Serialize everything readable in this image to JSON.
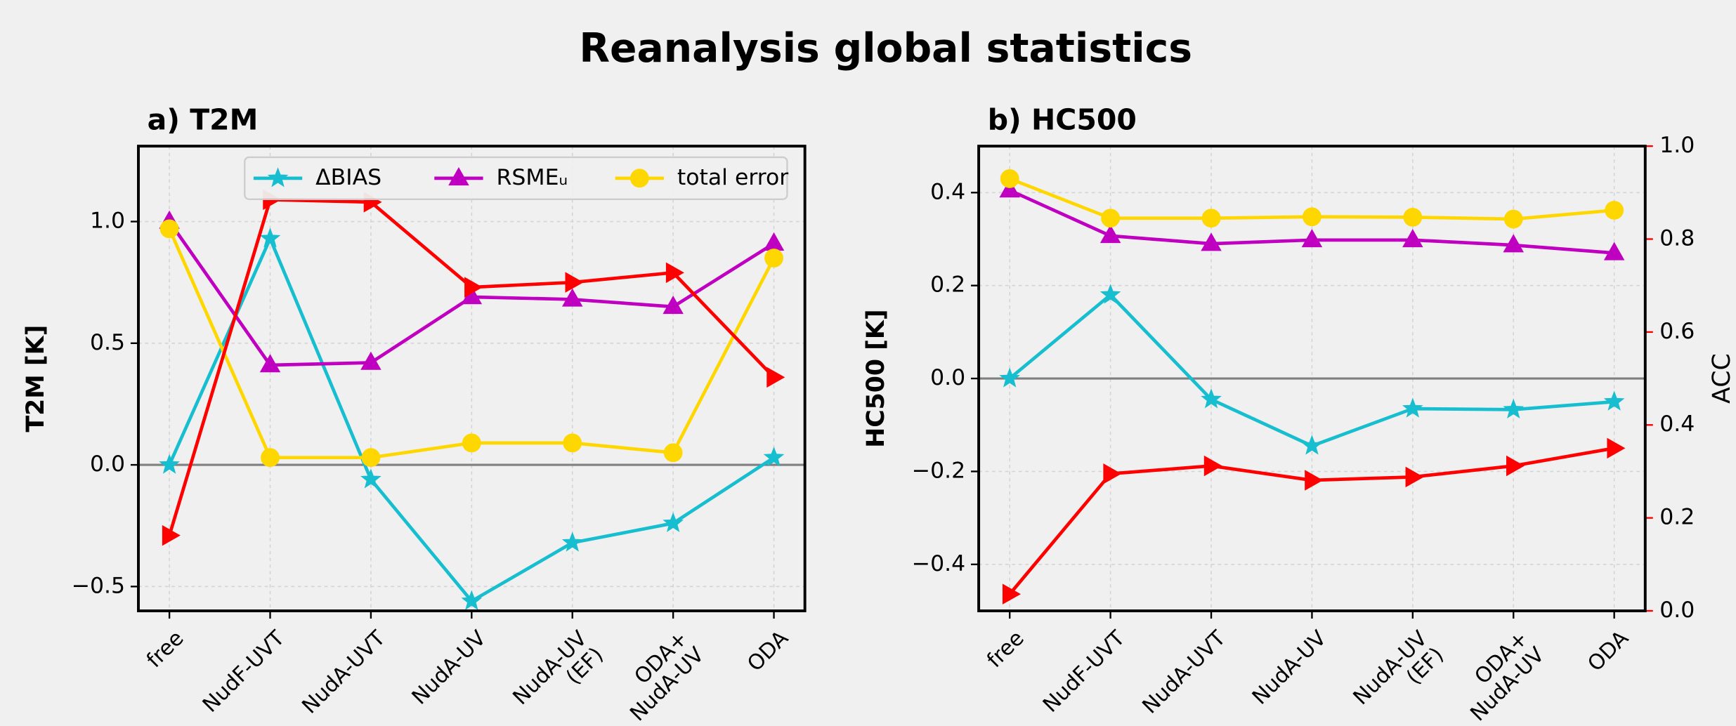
{
  "title": "Reanalysis global statistics",
  "chart_data": [
    {
      "type": "line",
      "title": "a) T2M",
      "ylabel": "T2M [K]",
      "categories": [
        "free",
        "NudF-UVT",
        "NudA-UVT",
        "NudA-UV",
        "NudA-UV\n(EF)",
        "ODA+\nNudA-UV",
        "ODA"
      ],
      "ylim": [
        -0.6,
        1.31
      ],
      "yticks": [
        {
          "value": -0.5,
          "label": "−0.5"
        },
        {
          "value": 0,
          "label": "0.0"
        },
        0.5,
        {
          "value": 1,
          "label": "1.0"
        }
      ],
      "grid": true,
      "hline": 0,
      "legend": "upper center",
      "series": [
        {
          "name": "ΔBIAS",
          "color": "#17becf",
          "marker": "star",
          "values": [
            0.0,
            0.93,
            -0.06,
            -0.56,
            -0.32,
            -0.24,
            0.03
          ]
        },
        {
          "name": "RSMEᵤ",
          "color": "#c000c0",
          "marker": "triangle-up",
          "values": [
            1.0,
            0.41,
            0.42,
            0.69,
            0.68,
            0.65,
            0.91
          ]
        },
        {
          "name": "total error",
          "color": "#ffd700",
          "marker": "circle",
          "values": [
            0.97,
            0.03,
            0.03,
            0.09,
            0.09,
            0.05,
            0.85
          ]
        },
        {
          "color": "#ff0000",
          "marker": "triangle-right",
          "values": [
            -0.29,
            1.09,
            1.08,
            0.73,
            0.75,
            0.79,
            0.36
          ]
        }
      ]
    },
    {
      "type": "line",
      "title": "b) HC500",
      "ylabel": "HC500 [K]",
      "y2label": "ACC",
      "y2color": "#ff0000",
      "categories": [
        "free",
        "NudF-UVT",
        "NudA-UVT",
        "NudA-UV",
        "NudA-UV\n(EF)",
        "ODA+\nNudA-UV",
        "ODA"
      ],
      "ylim": [
        -0.5,
        0.5
      ],
      "yticks": [
        {
          "value": -0.4,
          "label": "−0.4"
        },
        {
          "value": -0.2,
          "label": "−0.2"
        },
        {
          "value": 0,
          "label": "0.0"
        },
        0.2,
        0.4
      ],
      "y2lim": [
        0,
        1
      ],
      "y2ticks": [
        {
          "value": 0,
          "label": "0.0"
        },
        0.2,
        0.4,
        0.6,
        0.8,
        {
          "value": 1,
          "label": "1.0"
        }
      ],
      "grid": true,
      "hline": 0,
      "series": [
        {
          "name": "ΔBIAS",
          "color": "#17becf",
          "marker": "star",
          "values": [
            0.0,
            0.18,
            -0.045,
            -0.145,
            -0.065,
            -0.067,
            -0.05
          ]
        },
        {
          "name": "RSMEᵤ",
          "color": "#c000c0",
          "marker": "triangle-up",
          "values": [
            0.405,
            0.307,
            0.29,
            0.298,
            0.298,
            0.287,
            0.27
          ]
        },
        {
          "name": "total error",
          "color": "#ffd700",
          "marker": "circle",
          "values": [
            0.43,
            0.345,
            0.345,
            0.348,
            0.347,
            0.343,
            0.362
          ]
        },
        {
          "color": "#ff0000",
          "marker": "triangle-right",
          "axis": "y2",
          "values": [
            0.036,
            0.295,
            0.312,
            0.281,
            0.288,
            0.312,
            0.35
          ]
        }
      ]
    }
  ]
}
